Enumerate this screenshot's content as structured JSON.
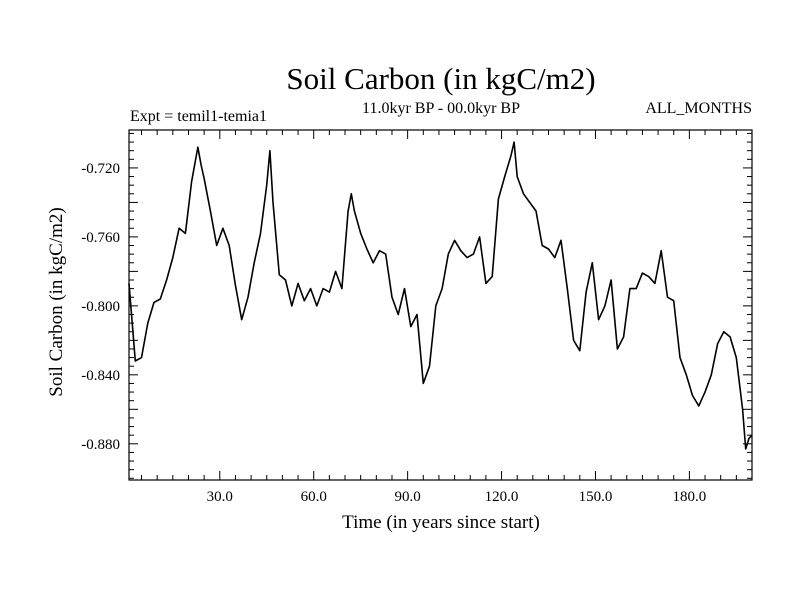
{
  "chart_data": {
    "type": "line",
    "title": "Soil Carbon (in kgC/m2)",
    "experiment_label": "Expt = temil1-temia1",
    "period_label": "11.0kyr BP - 00.0kyr BP",
    "season_label": "ALL_MONTHS",
    "xlabel": "Time (in years since start)",
    "ylabel": "Soil Carbon (in kgC/m2)",
    "xlim": [
      1,
      200
    ],
    "ylim": [
      -0.901,
      -0.698
    ],
    "x_ticks": [
      30,
      60,
      90,
      120,
      150,
      180
    ],
    "x_tick_labels": [
      "30.0",
      "60.0",
      "90.0",
      "120.0",
      "150.0",
      "180.0"
    ],
    "y_ticks": [
      -0.72,
      -0.76,
      -0.8,
      -0.84,
      -0.88
    ],
    "y_tick_labels": [
      "-0.720",
      "-0.760",
      "-0.800",
      "-0.840",
      "-0.880"
    ],
    "grid": false,
    "series": [
      {
        "name": "Soil Carbon",
        "x": [
          1,
          3,
          5,
          7,
          9,
          11,
          13,
          15,
          17,
          19,
          21,
          22,
          23,
          24,
          25,
          27,
          29,
          31,
          33,
          35,
          37,
          39,
          41,
          43,
          45,
          46,
          47,
          49,
          51,
          53,
          55,
          57,
          59,
          61,
          63,
          65,
          67,
          69,
          71,
          72,
          73,
          75,
          77,
          79,
          81,
          83,
          85,
          87,
          89,
          91,
          93,
          95,
          97,
          99,
          101,
          103,
          105,
          107,
          109,
          111,
          113,
          115,
          117,
          119,
          121,
          123,
          124,
          125,
          127,
          129,
          131,
          133,
          135,
          137,
          139,
          141,
          143,
          145,
          147,
          149,
          151,
          153,
          155,
          157,
          159,
          161,
          163,
          165,
          167,
          169,
          171,
          173,
          175,
          177,
          179,
          181,
          183,
          185,
          187,
          189,
          191,
          193,
          195,
          197,
          198,
          199,
          200
        ],
        "values": [
          -0.787,
          -0.832,
          -0.83,
          -0.81,
          -0.798,
          -0.796,
          -0.785,
          -0.772,
          -0.755,
          -0.758,
          -0.728,
          -0.718,
          -0.708,
          -0.718,
          -0.726,
          -0.745,
          -0.765,
          -0.755,
          -0.765,
          -0.788,
          -0.808,
          -0.795,
          -0.775,
          -0.758,
          -0.73,
          -0.71,
          -0.74,
          -0.782,
          -0.785,
          -0.8,
          -0.787,
          -0.797,
          -0.79,
          -0.8,
          -0.79,
          -0.792,
          -0.78,
          -0.79,
          -0.745,
          -0.735,
          -0.745,
          -0.758,
          -0.767,
          -0.775,
          -0.768,
          -0.77,
          -0.795,
          -0.805,
          -0.79,
          -0.812,
          -0.805,
          -0.845,
          -0.835,
          -0.8,
          -0.79,
          -0.77,
          -0.762,
          -0.768,
          -0.772,
          -0.77,
          -0.76,
          -0.787,
          -0.783,
          -0.738,
          -0.725,
          -0.713,
          -0.705,
          -0.725,
          -0.735,
          -0.74,
          -0.745,
          -0.765,
          -0.767,
          -0.772,
          -0.762,
          -0.79,
          -0.82,
          -0.826,
          -0.792,
          -0.775,
          -0.808,
          -0.8,
          -0.785,
          -0.825,
          -0.818,
          -0.79,
          -0.79,
          -0.781,
          -0.783,
          -0.787,
          -0.768,
          -0.795,
          -0.797,
          -0.83,
          -0.84,
          -0.852,
          -0.858,
          -0.85,
          -0.84,
          -0.822,
          -0.815,
          -0.818,
          -0.83,
          -0.86,
          -0.883,
          -0.877,
          -0.875
        ]
      }
    ]
  }
}
